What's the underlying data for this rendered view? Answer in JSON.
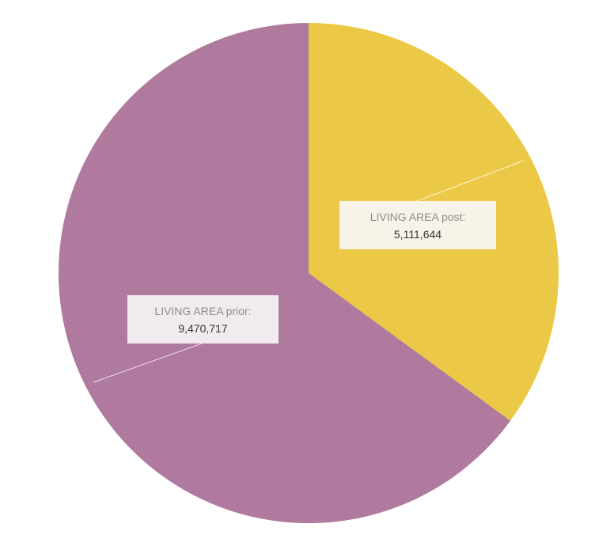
{
  "chart_data": {
    "type": "pie",
    "title": "",
    "slices": [
      {
        "label": "LIVING AREA post:",
        "value": 5111644,
        "value_text": "5,111,644",
        "color": "#EBC845",
        "label_bg": "#F8F3E8"
      },
      {
        "label": "LIVING AREA prior:",
        "value": 9470717,
        "value_text": "9,470,717",
        "color": "#B0799E",
        "label_bg": "#F1EBF0"
      }
    ],
    "start_angle": "12 o'clock, clockwise",
    "legend": "none"
  }
}
